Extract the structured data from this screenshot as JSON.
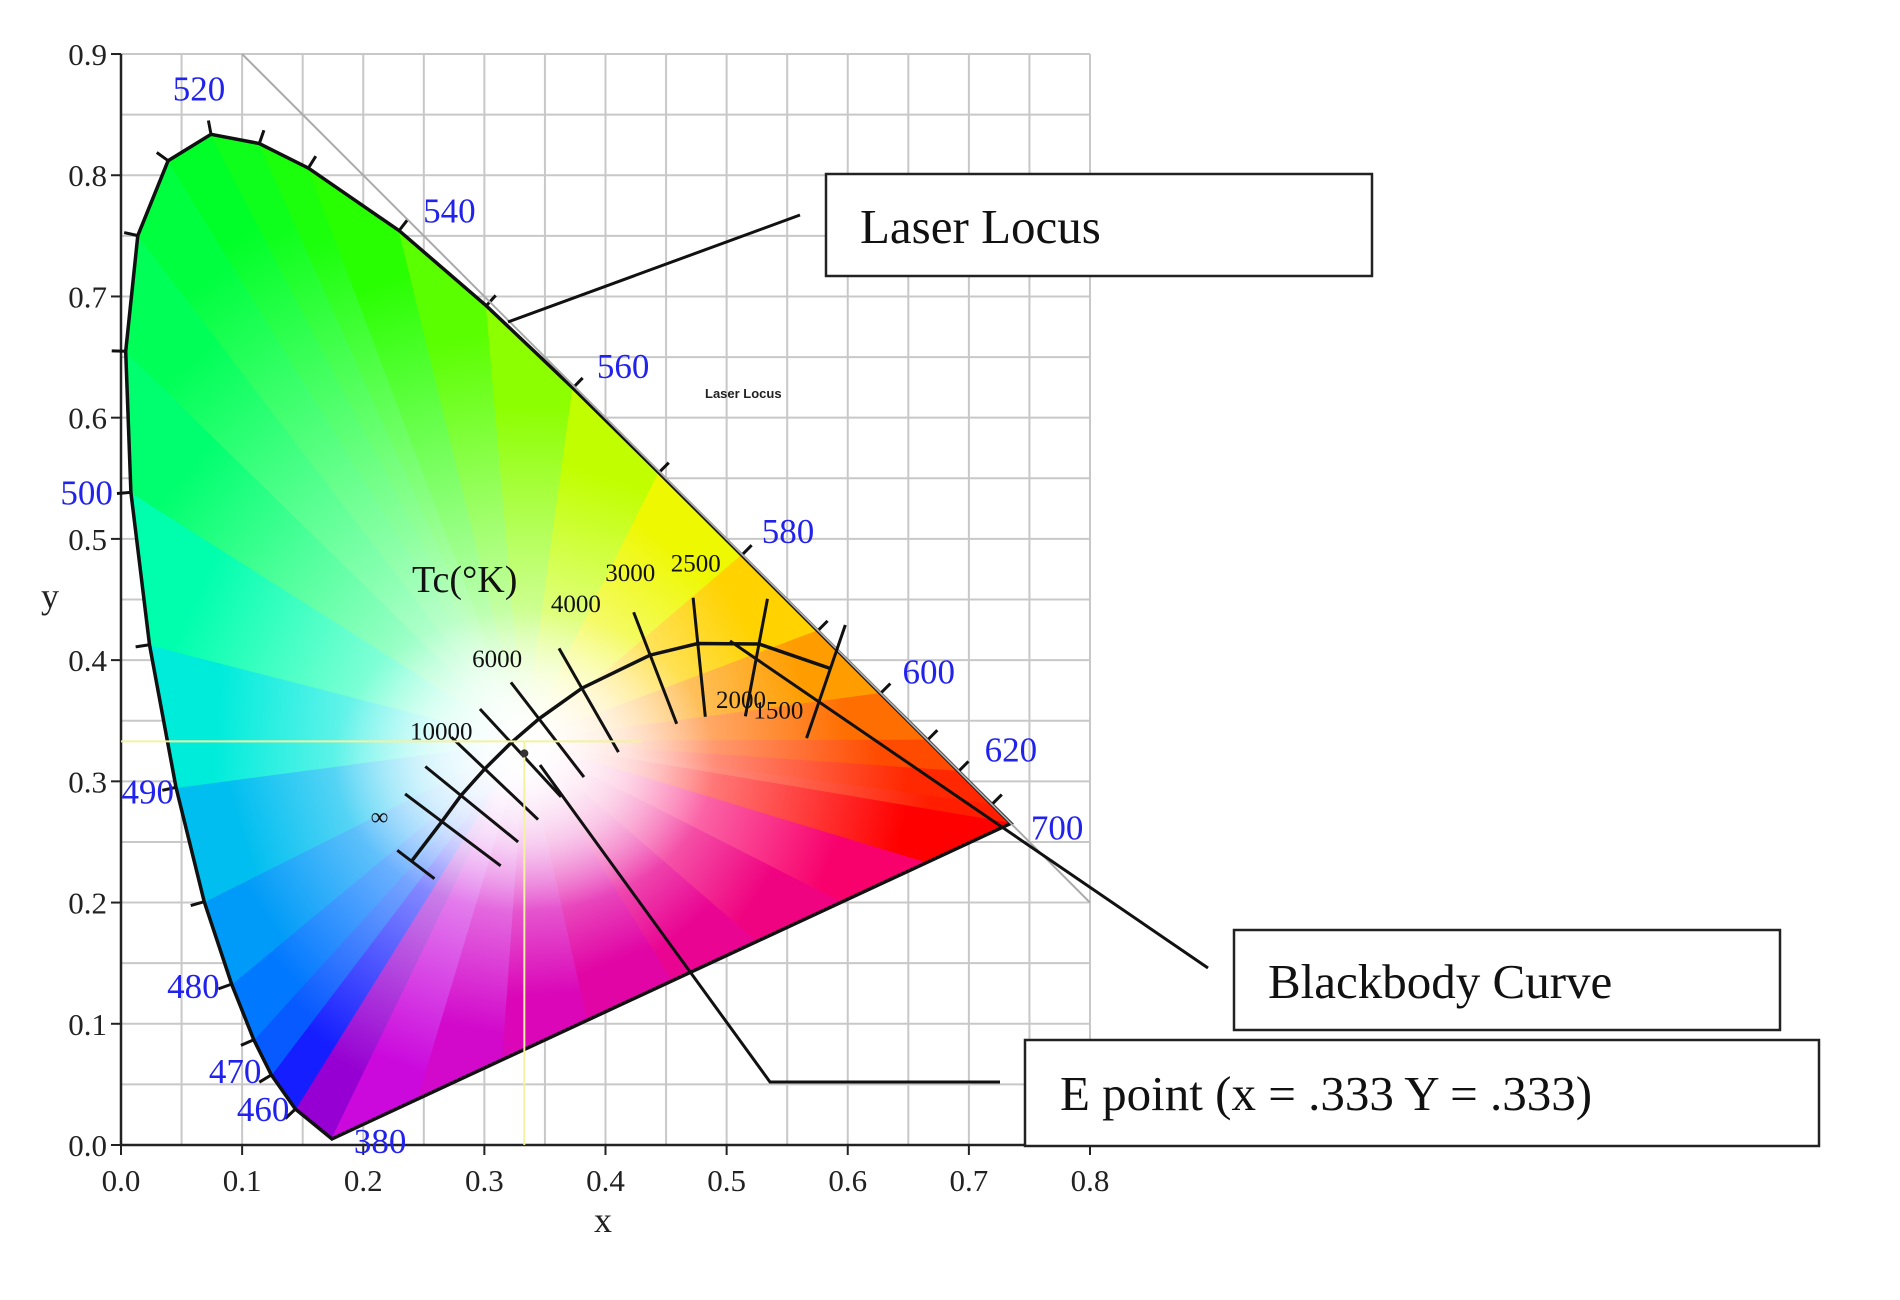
{
  "chart_data": {
    "type": "chromaticity-diagram",
    "xlabel": "x",
    "ylabel": "y",
    "xlim": [
      0.0,
      0.8
    ],
    "ylim": [
      0.0,
      0.9
    ],
    "x_ticks": [
      "0.0",
      "0.1",
      "0.2",
      "0.3",
      "0.4",
      "0.5",
      "0.6",
      "0.7",
      "0.8"
    ],
    "y_ticks": [
      "0.0",
      "0.1",
      "0.2",
      "0.3",
      "0.4",
      "0.5",
      "0.6",
      "0.7",
      "0.8",
      "0.9"
    ],
    "grid": true,
    "spectral_locus": [
      {
        "nm": 380,
        "x": 0.1741,
        "y": 0.005
      },
      {
        "nm": 460,
        "x": 0.144,
        "y": 0.0297
      },
      {
        "nm": 470,
        "x": 0.1241,
        "y": 0.0578
      },
      {
        "nm": 475,
        "x": 0.1096,
        "y": 0.0868
      },
      {
        "nm": 480,
        "x": 0.0913,
        "y": 0.1327
      },
      {
        "nm": 485,
        "x": 0.0687,
        "y": 0.2007
      },
      {
        "nm": 490,
        "x": 0.0454,
        "y": 0.295
      },
      {
        "nm": 495,
        "x": 0.0235,
        "y": 0.4127
      },
      {
        "nm": 500,
        "x": 0.0082,
        "y": 0.5384
      },
      {
        "nm": 505,
        "x": 0.0039,
        "y": 0.6548
      },
      {
        "nm": 510,
        "x": 0.0139,
        "y": 0.7502
      },
      {
        "nm": 515,
        "x": 0.0389,
        "y": 0.812
      },
      {
        "nm": 520,
        "x": 0.0743,
        "y": 0.8338
      },
      {
        "nm": 525,
        "x": 0.1142,
        "y": 0.8262
      },
      {
        "nm": 530,
        "x": 0.1547,
        "y": 0.8059
      },
      {
        "nm": 540,
        "x": 0.2296,
        "y": 0.7543
      },
      {
        "nm": 550,
        "x": 0.3016,
        "y": 0.6923
      },
      {
        "nm": 560,
        "x": 0.3731,
        "y": 0.6245
      },
      {
        "nm": 570,
        "x": 0.4441,
        "y": 0.5547
      },
      {
        "nm": 580,
        "x": 0.5125,
        "y": 0.4866
      },
      {
        "nm": 590,
        "x": 0.5752,
        "y": 0.4242
      },
      {
        "nm": 600,
        "x": 0.627,
        "y": 0.3725
      },
      {
        "nm": 610,
        "x": 0.6658,
        "y": 0.334
      },
      {
        "nm": 620,
        "x": 0.6915,
        "y": 0.3083
      },
      {
        "nm": 640,
        "x": 0.719,
        "y": 0.2809
      },
      {
        "nm": 700,
        "x": 0.7347,
        "y": 0.2653
      }
    ],
    "wavelength_labels": [
      {
        "text": "380",
        "x": 0.1741,
        "y": 0.005
      },
      {
        "text": "460",
        "x": 0.144,
        "y": 0.0297
      },
      {
        "text": "470",
        "x": 0.1241,
        "y": 0.0578
      },
      {
        "text": "480",
        "x": 0.0913,
        "y": 0.1327
      },
      {
        "text": "490",
        "x": 0.0454,
        "y": 0.295
      },
      {
        "text": "500",
        "x": 0.0082,
        "y": 0.5384
      },
      {
        "text": "520",
        "x": 0.0743,
        "y": 0.8338
      },
      {
        "text": "540",
        "x": 0.2296,
        "y": 0.7543
      },
      {
        "text": "560",
        "x": 0.3731,
        "y": 0.6245
      },
      {
        "text": "580",
        "x": 0.5125,
        "y": 0.4866
      },
      {
        "text": "600",
        "x": 0.627,
        "y": 0.3725
      },
      {
        "text": "620",
        "x": 0.6915,
        "y": 0.3083
      },
      {
        "text": "700",
        "x": 0.7347,
        "y": 0.2653
      }
    ],
    "laser_locus_line": [
      {
        "x": 0.1,
        "y": 0.9
      },
      {
        "x": 0.8,
        "y": 0.2
      }
    ],
    "blackbody_curve": [
      {
        "x": 0.2399,
        "y": 0.2341
      },
      {
        "x": 0.2649,
        "y": 0.2668
      },
      {
        "x": 0.2807,
        "y": 0.2883
      },
      {
        "x": 0.3003,
        "y": 0.3103
      },
      {
        "x": 0.3221,
        "y": 0.3318
      },
      {
        "x": 0.3451,
        "y": 0.3516
      },
      {
        "x": 0.3805,
        "y": 0.3768
      },
      {
        "x": 0.4369,
        "y": 0.4041
      },
      {
        "x": 0.4762,
        "y": 0.4137
      },
      {
        "x": 0.5267,
        "y": 0.4133
      },
      {
        "x": 0.5857,
        "y": 0.3931
      }
    ],
    "temperature_labels": [
      {
        "text": "10000",
        "x": 0.2809,
        "y": 0.2884
      },
      {
        "text": "6000",
        "x": 0.3221,
        "y": 0.3318
      },
      {
        "text": "4000",
        "x": 0.3805,
        "y": 0.3768
      },
      {
        "text": "3000",
        "x": 0.4369,
        "y": 0.4041
      },
      {
        "text": "2500",
        "x": 0.4762,
        "y": 0.4137
      },
      {
        "text": "2000",
        "x": 0.5267,
        "y": 0.4133
      },
      {
        "text": "1500",
        "x": 0.5857,
        "y": 0.3931
      },
      {
        "text": "∞",
        "x": 0.2399,
        "y": 0.2341
      }
    ],
    "tc_label": "Tc(°K)",
    "e_point": {
      "x": 0.333,
      "y": 0.333
    },
    "inset_note": "Laser Locus",
    "annotations": [
      {
        "text": "Laser Locus"
      },
      {
        "text": "Blackbody Curve"
      },
      {
        "text": "E point  (x = .333  Y = .333)"
      }
    ]
  }
}
